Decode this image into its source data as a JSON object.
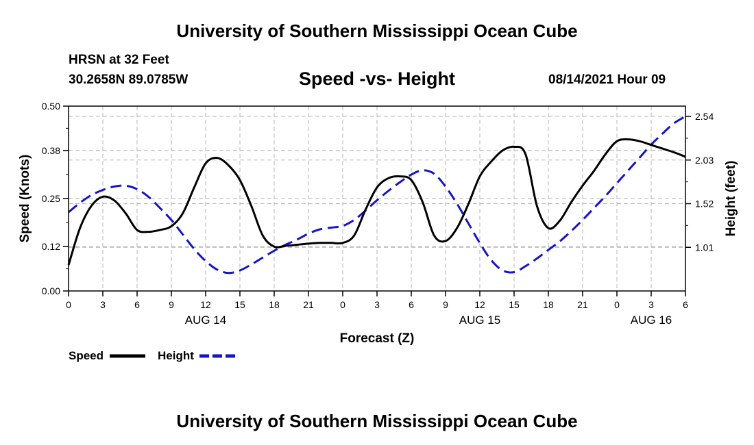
{
  "header": {
    "title": "University of Southern Mississippi Ocean Cube",
    "station": "HRSN at 32 Feet",
    "coords": "30.2658N  89.0785W",
    "subtitle": "Speed -vs- Height",
    "datetime": "08/14/2021 Hour 09"
  },
  "footer": {
    "title": "University of Southern Mississippi Ocean Cube"
  },
  "colors": {
    "speed": "#000000",
    "height": "#1414c8",
    "grid": "#b4b4b4"
  },
  "chart_data": {
    "type": "line",
    "title": "Speed -vs- Height",
    "xlabel": "Forecast (Z)",
    "ylabel": "Speed (Knots)",
    "y2label": "Height (feet)",
    "x_range": [
      0,
      54
    ],
    "x_ticks": [
      0,
      3,
      6,
      9,
      12,
      15,
      18,
      21,
      24,
      27,
      30,
      33,
      36,
      39,
      42,
      45,
      48,
      51,
      54
    ],
    "x_tick_labels": [
      "0",
      "3",
      "6",
      "9",
      "12",
      "15",
      "18",
      "21",
      "0",
      "3",
      "6",
      "9",
      "12",
      "15",
      "18",
      "21",
      "0",
      "3",
      "6"
    ],
    "day_labels": [
      {
        "x": 12,
        "label": "AUG 14"
      },
      {
        "x": 36,
        "label": "AUG 15"
      },
      {
        "x": 51,
        "label": "AUG 16"
      }
    ],
    "y_left": {
      "range": [
        0,
        0.5
      ],
      "ticks": [
        0,
        0.12,
        0.25,
        0.38,
        0.5
      ],
      "labels": [
        "0.00",
        "0.12",
        "0.25",
        "0.38",
        "0.50"
      ]
    },
    "y_right": {
      "range": [
        0.5,
        2.66
      ],
      "ticks": [
        1.01,
        1.52,
        2.03,
        2.54
      ],
      "labels": [
        "1.01",
        "1.52",
        "2.03",
        "2.54"
      ]
    },
    "grid": true,
    "series": [
      {
        "name": "Speed",
        "axis": "left",
        "style": "solid",
        "x": [
          0,
          1,
          2,
          3,
          4,
          5,
          6,
          7,
          8,
          9,
          10,
          11,
          12,
          13,
          14,
          15,
          16,
          17,
          18,
          19,
          20,
          21,
          22,
          23,
          24,
          25,
          26,
          27,
          28,
          29,
          30,
          31,
          32,
          33,
          34,
          35,
          36,
          37,
          38,
          39,
          40,
          41,
          42,
          43,
          44,
          45,
          46,
          47,
          48,
          49,
          50,
          51,
          52,
          53,
          54
        ],
        "values": [
          0.07,
          0.17,
          0.23,
          0.255,
          0.245,
          0.21,
          0.165,
          0.16,
          0.165,
          0.175,
          0.21,
          0.28,
          0.345,
          0.36,
          0.34,
          0.3,
          0.23,
          0.15,
          0.12,
          0.122,
          0.125,
          0.128,
          0.13,
          0.13,
          0.13,
          0.15,
          0.22,
          0.28,
          0.305,
          0.31,
          0.3,
          0.24,
          0.15,
          0.135,
          0.17,
          0.235,
          0.31,
          0.35,
          0.38,
          0.39,
          0.37,
          0.23,
          0.17,
          0.19,
          0.24,
          0.285,
          0.325,
          0.37,
          0.405,
          0.41,
          0.405,
          0.395,
          0.385,
          0.375,
          0.363
        ]
      },
      {
        "name": "Height",
        "axis": "right",
        "style": "dashed",
        "x": [
          0,
          1,
          2,
          3,
          4,
          5,
          6,
          7,
          8,
          9,
          10,
          11,
          12,
          13,
          14,
          15,
          16,
          17,
          18,
          19,
          20,
          21,
          22,
          23,
          24,
          25,
          26,
          27,
          28,
          29,
          30,
          31,
          32,
          33,
          34,
          35,
          36,
          37,
          38,
          39,
          40,
          41,
          42,
          43,
          44,
          45,
          46,
          47,
          48,
          49,
          50,
          51,
          52,
          53,
          54
        ],
        "values": [
          1.42,
          1.53,
          1.62,
          1.68,
          1.72,
          1.73,
          1.69,
          1.6,
          1.47,
          1.33,
          1.16,
          0.99,
          0.85,
          0.75,
          0.71,
          0.74,
          0.81,
          0.89,
          0.97,
          1.04,
          1.1,
          1.17,
          1.22,
          1.24,
          1.26,
          1.33,
          1.44,
          1.56,
          1.67,
          1.77,
          1.86,
          1.91,
          1.87,
          1.72,
          1.52,
          1.29,
          1.06,
          0.86,
          0.74,
          0.72,
          0.79,
          0.88,
          0.98,
          1.08,
          1.2,
          1.33,
          1.47,
          1.61,
          1.76,
          1.91,
          2.06,
          2.21,
          2.34,
          2.46,
          2.54
        ]
      }
    ],
    "legend": [
      {
        "name": "Speed",
        "label": "Speed"
      },
      {
        "name": "Height",
        "label": "Height"
      }
    ],
    "legend_position": "bottom-left"
  }
}
